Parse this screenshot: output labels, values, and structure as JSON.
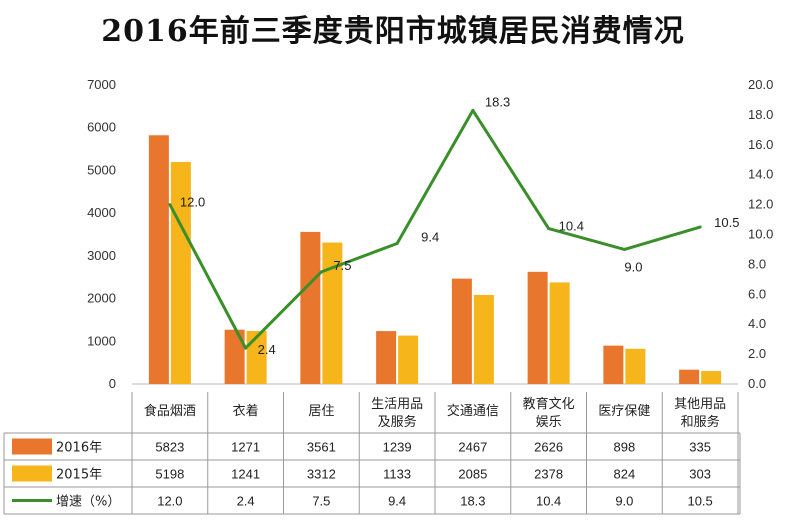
{
  "chart_data": {
    "type": "bar",
    "title": "2016年前三季度贵阳市城镇居民消费情况",
    "categories": [
      [
        "食品烟酒"
      ],
      [
        "衣着"
      ],
      [
        "居住"
      ],
      [
        "生活用品",
        "及服务"
      ],
      [
        "交通通信"
      ],
      [
        "教育文化",
        "娱乐"
      ],
      [
        "医疗保健"
      ],
      [
        "其他用品",
        "和服务"
      ]
    ],
    "series": [
      {
        "name": "2016年",
        "type": "bar",
        "axis": "left",
        "color": "#e8762c",
        "values": [
          5823,
          1271,
          3561,
          1239,
          2467,
          2626,
          898,
          335
        ]
      },
      {
        "name": "2015年",
        "type": "bar",
        "axis": "left",
        "color": "#f5b51b",
        "values": [
          5198,
          1241,
          3312,
          1133,
          2085,
          2378,
          824,
          303
        ]
      },
      {
        "name": "增速（%）",
        "type": "line",
        "axis": "right",
        "color": "#3a8f2a",
        "values": [
          12.0,
          2.4,
          7.5,
          9.4,
          18.3,
          10.4,
          9.0,
          10.5
        ],
        "labels": [
          "12.0",
          "2.4",
          "7.5",
          "9.4",
          "18.3",
          "10.4",
          "9.0",
          "10.5"
        ]
      }
    ],
    "y_left": {
      "min": 0,
      "max": 7000,
      "ticks": [
        "0",
        "1000",
        "2000",
        "3000",
        "4000",
        "5000",
        "6000",
        "7000"
      ]
    },
    "y_right": {
      "min": 0,
      "max": 20,
      "ticks": [
        "0.0",
        "2.0",
        "4.0",
        "6.0",
        "8.0",
        "10.0",
        "12.0",
        "14.0",
        "16.0",
        "18.0",
        "20.0"
      ]
    },
    "grid": false,
    "legend": "data-table"
  }
}
